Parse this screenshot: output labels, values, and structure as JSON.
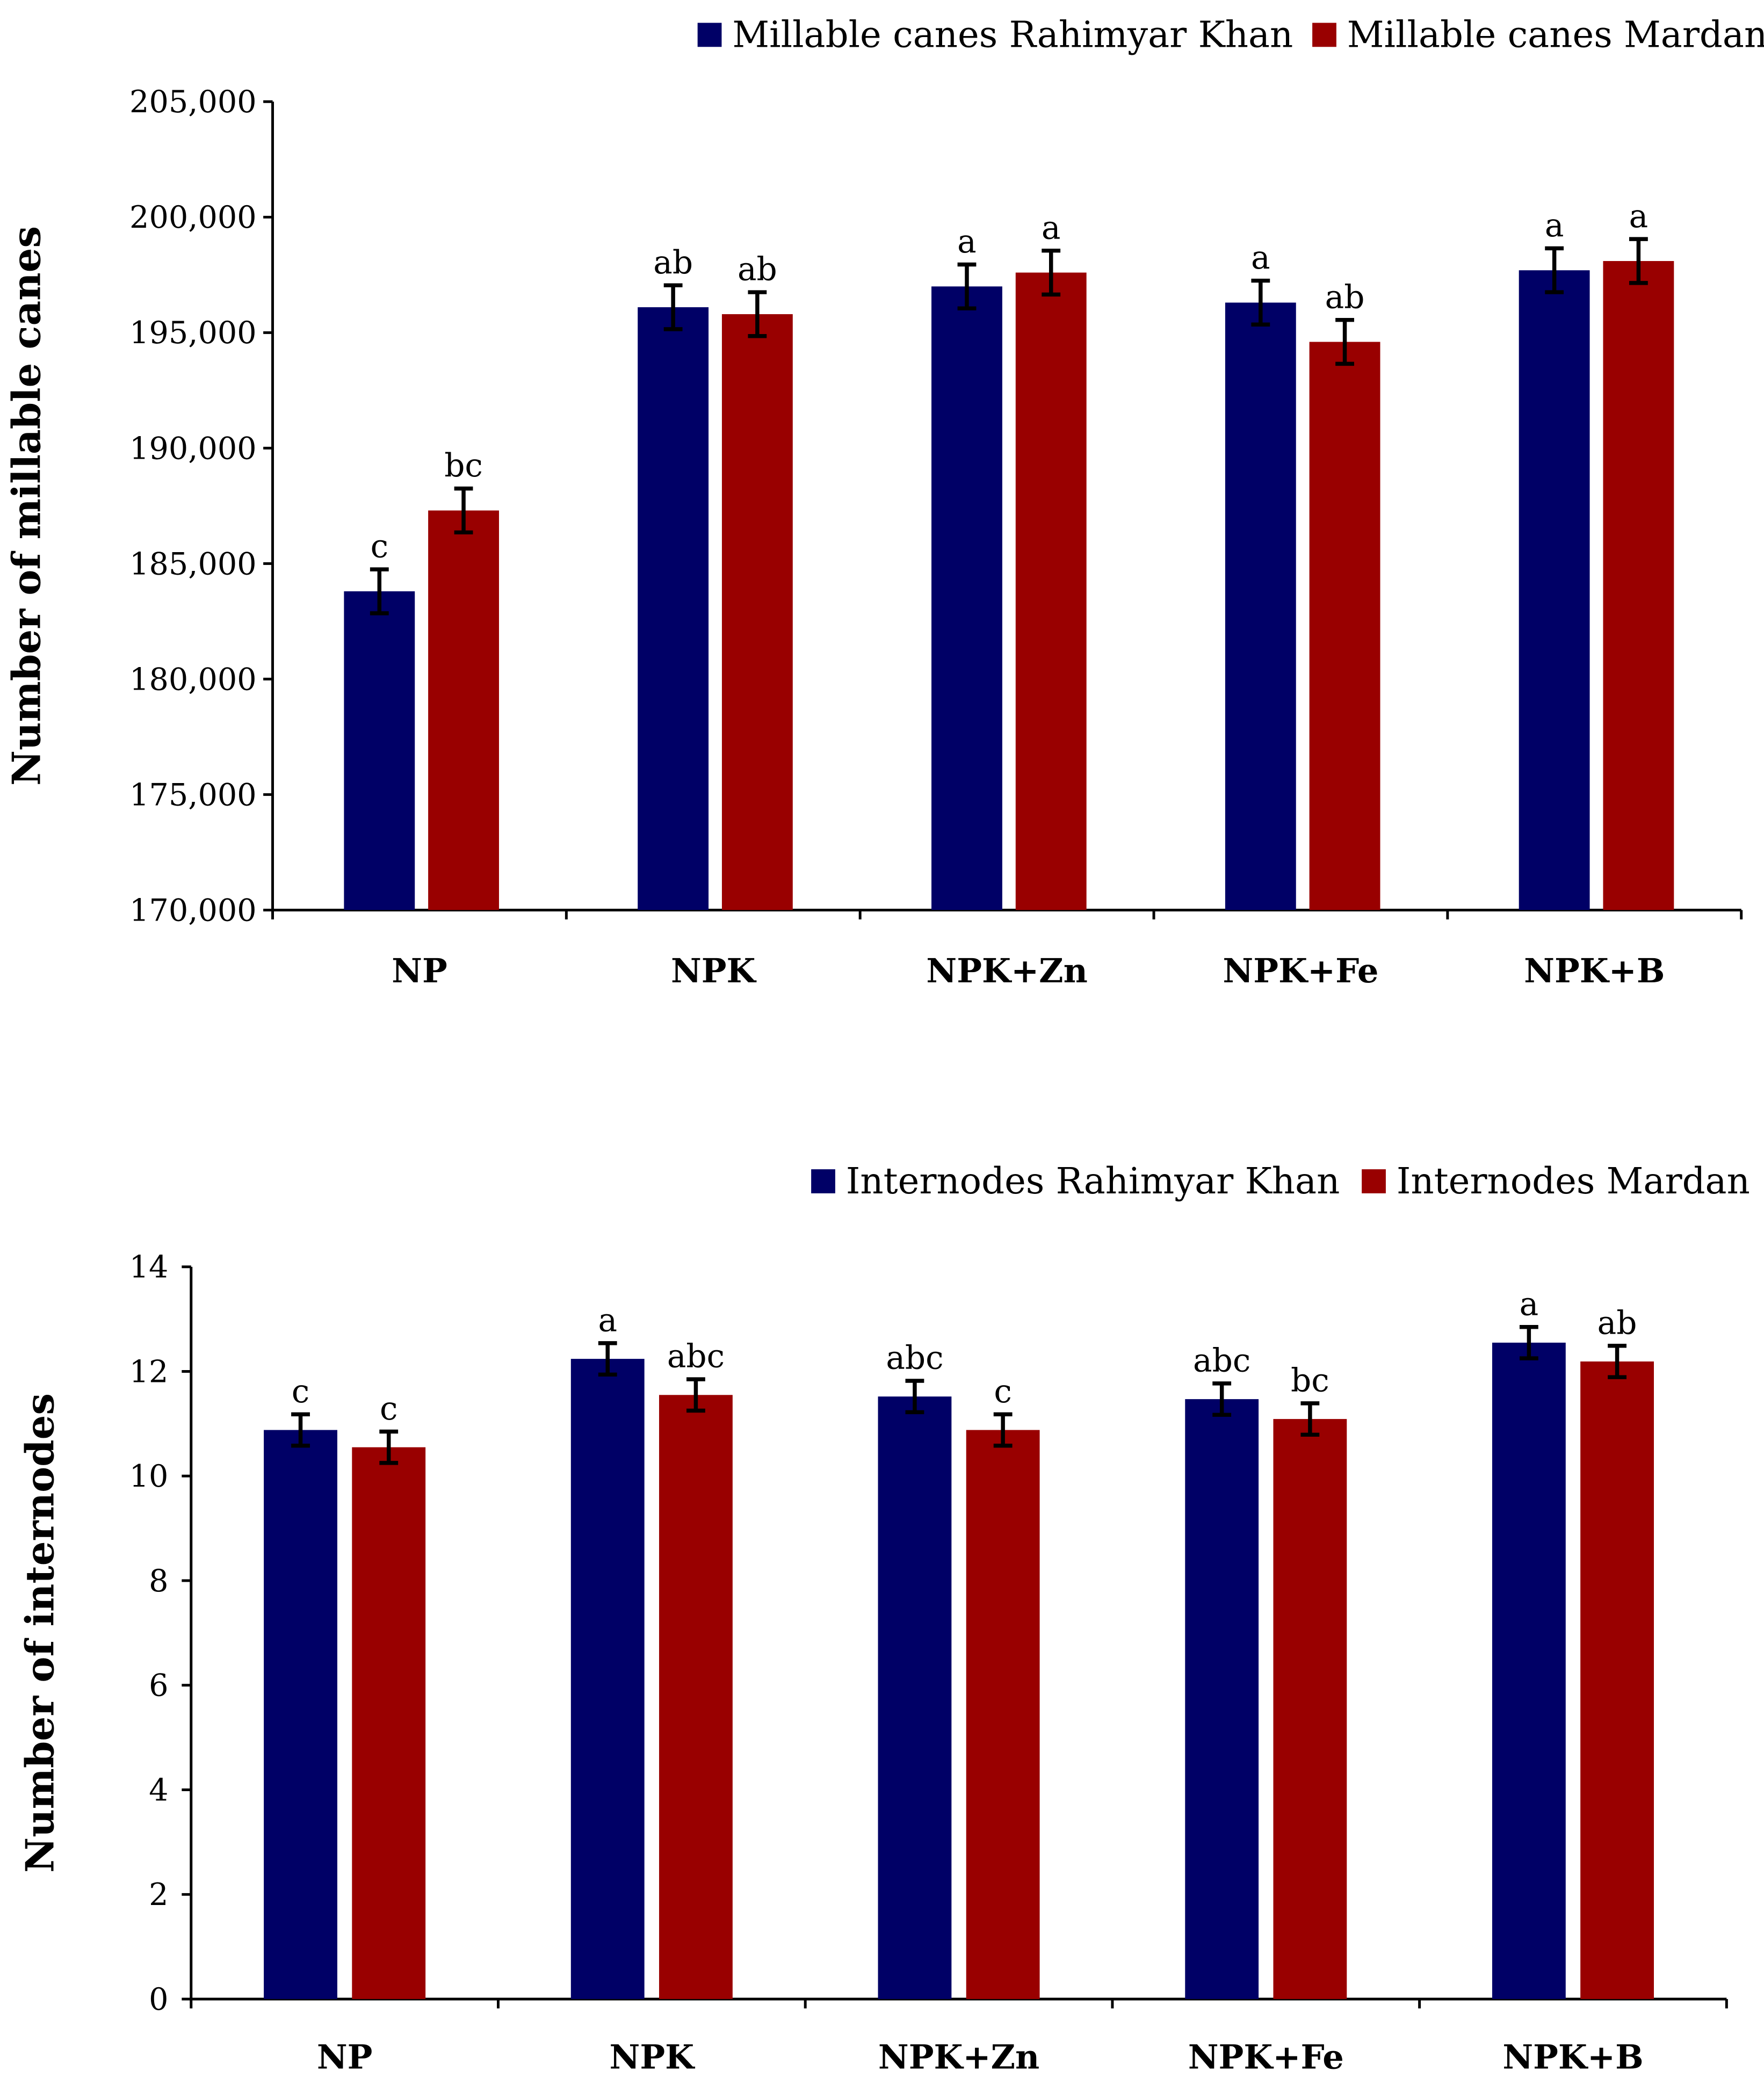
{
  "colors": {
    "series1": "#000066",
    "series2": "#990000"
  },
  "chart_data": [
    {
      "type": "bar",
      "title": "",
      "xlabel": "",
      "ylabel": "Number of millable canes",
      "categories": [
        "NP",
        "NPK",
        "NPK+Zn",
        "NPK+Fe",
        "NPK+B"
      ],
      "ylim": [
        170000,
        205000
      ],
      "yticks": [
        170000,
        175000,
        180000,
        185000,
        190000,
        195000,
        200000,
        205000
      ],
      "ytick_labels": [
        "170,000",
        "175,000",
        "180,000",
        "185,000",
        "190,000",
        "195,000",
        "200,000",
        "205,000"
      ],
      "legend_position": "top-right",
      "grid": false,
      "series": [
        {
          "name": "Millable canes Rahimyar Khan",
          "values": [
            183800,
            196100,
            197000,
            196300,
            197700
          ],
          "errors": [
            950,
            950,
            950,
            950,
            950
          ],
          "letters": [
            "c",
            "ab",
            "a",
            "a",
            "a"
          ]
        },
        {
          "name": "Millable canes Mardan",
          "values": [
            187300,
            195800,
            197600,
            194600,
            198100
          ],
          "errors": [
            950,
            950,
            950,
            950,
            950
          ],
          "letters": [
            "bc",
            "ab",
            "a",
            "ab",
            "a"
          ]
        }
      ]
    },
    {
      "type": "bar",
      "title": "",
      "xlabel": "",
      "ylabel": "Number of internodes",
      "categories": [
        "NP",
        "NPK",
        "NPK+Zn",
        "NPK+Fe",
        "NPK+B"
      ],
      "ylim": [
        0,
        14
      ],
      "yticks": [
        0,
        2,
        4,
        6,
        8,
        10,
        12,
        14
      ],
      "ytick_labels": [
        "0",
        "2",
        "4",
        "6",
        "8",
        "10",
        "12",
        "14"
      ],
      "legend_position": "top-right",
      "grid": false,
      "series": [
        {
          "name": "Internodes Rahimyar Khan",
          "values": [
            10.88,
            12.24,
            11.52,
            11.47,
            12.55
          ],
          "errors": [
            0.3,
            0.3,
            0.3,
            0.3,
            0.3
          ],
          "letters": [
            "c",
            "a",
            "abc",
            "abc",
            "a"
          ]
        },
        {
          "name": "Internodes Mardan",
          "values": [
            10.55,
            11.55,
            10.88,
            11.09,
            12.19
          ],
          "errors": [
            0.3,
            0.3,
            0.3,
            0.3,
            0.3
          ],
          "letters": [
            "c",
            "abc",
            "c",
            "bc",
            "ab"
          ]
        }
      ]
    }
  ]
}
